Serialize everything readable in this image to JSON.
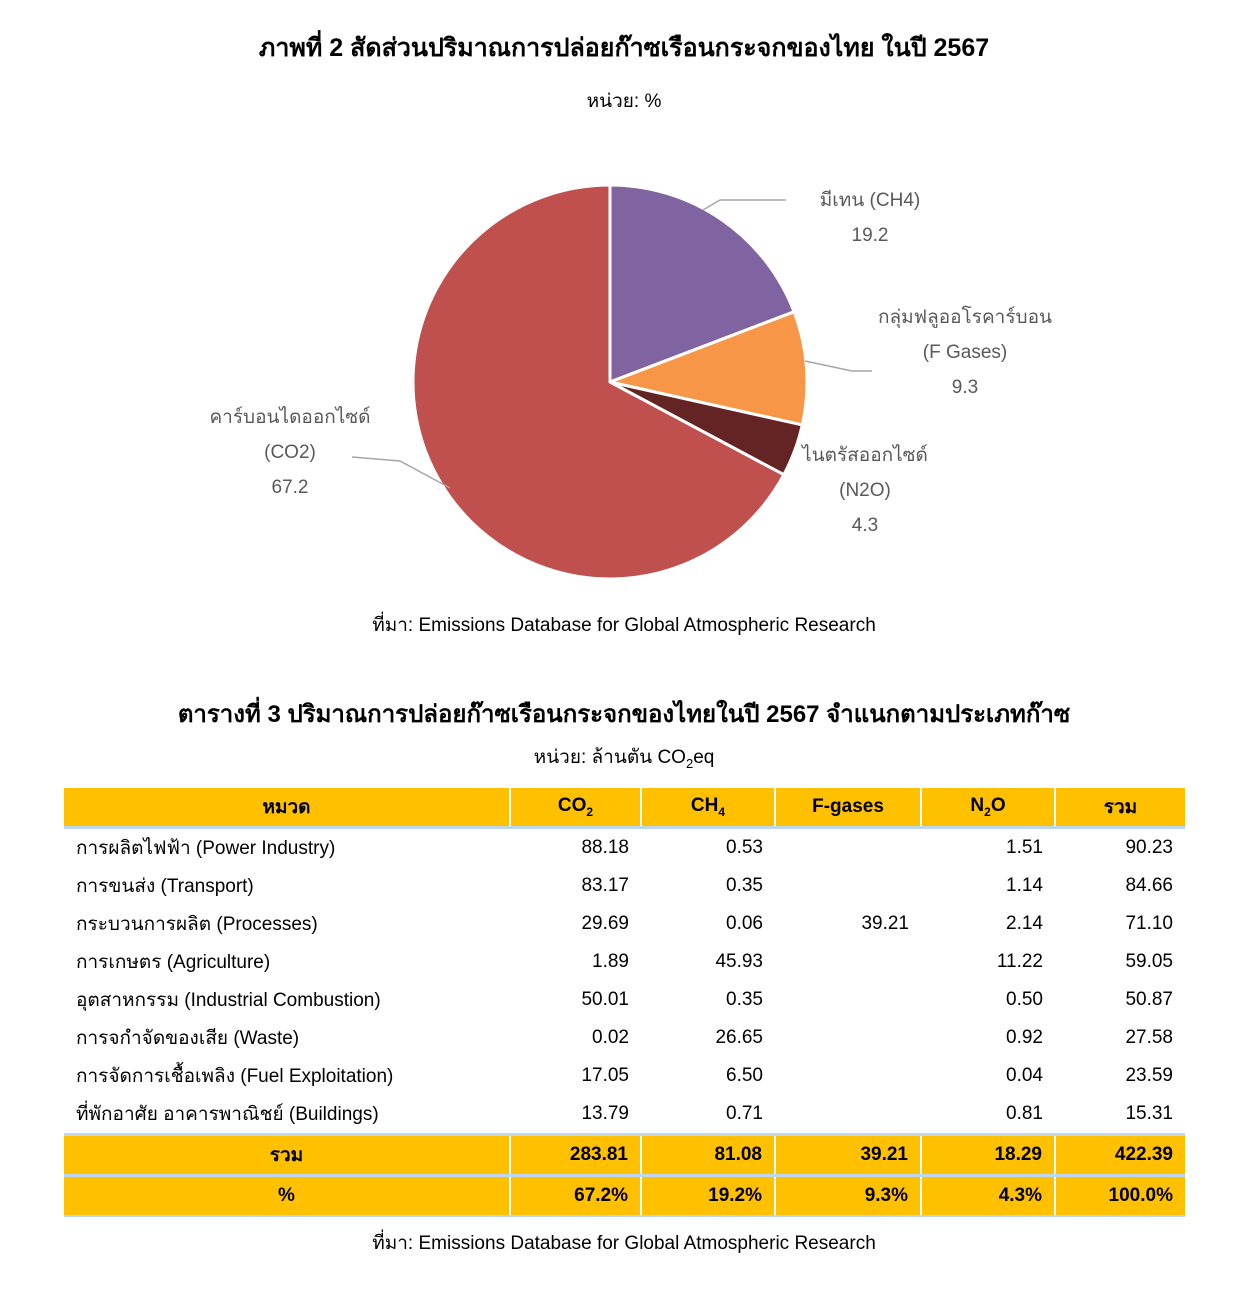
{
  "figure": {
    "title": "ภาพที่ 2 สัดส่วนปริมาณการปล่อยก๊าซเรือนกระจกของไทย ในปี 2567",
    "unit": "หน่วย: %",
    "source": "ที่มา: Emissions Database for Global Atmospheric Research"
  },
  "chart_data": [
    {
      "type": "pie",
      "title": "ภาพที่ 2 สัดส่วนปริมาณการปล่อยก๊าซเรือนกระจกของไทย ในปี 2567",
      "unit_label": "หน่วย: %",
      "start_angle_deg": 0,
      "direction": "clockwise",
      "legend_position": "callout-labels",
      "slices": [
        {
          "label": "มีเทน (CH4)",
          "label_line2": "",
          "value": 19.2,
          "color": "#8064A2"
        },
        {
          "label": "กลุ่มฟลูออโรคาร์บอน",
          "label_line2": "(F Gases)",
          "value": 9.3,
          "color": "#F79646"
        },
        {
          "label": "ไนตรัสออกไซด์",
          "label_line2": "(N2O)",
          "value": 4.3,
          "color": "#632423"
        },
        {
          "label": "คาร์บอนไดออกไซด์",
          "label_line2": "(CO2)",
          "value": 67.2,
          "color": "#C0504D"
        }
      ]
    },
    {
      "type": "table",
      "title": "ตารางที่ 3 ปริมาณการปล่อยก๊าซเรือนกระจกของไทยในปี 2567 จำแนกตามประเภทก๊าซ",
      "unit": "หน่วย: ล้านตัน CO2eq",
      "columns": [
        "หมวด",
        "CO2",
        "CH4",
        "F-gases",
        "N2O",
        "รวม"
      ],
      "rows": [
        [
          "การผลิตไฟฟ้า (Power Industry)",
          88.18,
          0.53,
          null,
          1.51,
          90.23
        ],
        [
          "การขนส่ง (Transport)",
          83.17,
          0.35,
          null,
          1.14,
          84.66
        ],
        [
          "กระบวนการผลิต (Processes)",
          29.69,
          0.06,
          39.21,
          2.14,
          71.1
        ],
        [
          "การเกษตร (Agriculture)",
          1.89,
          45.93,
          null,
          11.22,
          59.05
        ],
        [
          "อุตสาหกรรม (Industrial Combustion)",
          50.01,
          0.35,
          null,
          0.5,
          50.87
        ],
        [
          "การจกำจัดของเสีย (Waste)",
          0.02,
          26.65,
          null,
          0.92,
          27.58
        ],
        [
          "การจัดการเชื้อเพลิง (Fuel Exploitation)",
          17.05,
          6.5,
          null,
          0.04,
          23.59
        ],
        [
          "ที่พักอาศัย อาคารพาณิชย์ (Buildings)",
          13.79,
          0.71,
          null,
          0.81,
          15.31
        ]
      ],
      "total_row": [
        "รวม",
        283.81,
        81.08,
        39.21,
        18.29,
        422.39
      ],
      "percent_row": [
        "%",
        "67.2%",
        "19.2%",
        "9.3%",
        "4.3%",
        "100.0%"
      ]
    }
  ],
  "table_section": {
    "title": "ตารางที่ 3 ปริมาณการปล่อยก๊าซเรือนกระจกของไทยในปี 2567 จำแนกตามประเภทก๊าซ",
    "unit_prefix": "หน่วย: ล้านตัน CO",
    "unit_sub": "2",
    "unit_suffix": "eq",
    "source": "ที่มา: Emissions Database for Global Atmospheric Research",
    "header": [
      {
        "text": "หมวด"
      },
      {
        "text": "CO",
        "sub": "2"
      },
      {
        "text": "CH",
        "sub": "4"
      },
      {
        "text": "F-gases"
      },
      {
        "text": "N",
        "sub": "2",
        "post": "O"
      },
      {
        "text": "รวม"
      }
    ],
    "rows": [
      {
        "label": "การผลิตไฟฟ้า (Power Industry)",
        "values": [
          "88.18",
          "0.53",
          "",
          "1.51",
          "90.23"
        ]
      },
      {
        "label": "การขนส่ง (Transport)",
        "values": [
          "83.17",
          "0.35",
          "",
          "1.14",
          "84.66"
        ]
      },
      {
        "label": "กระบวนการผลิต (Processes)",
        "values": [
          "29.69",
          "0.06",
          "39.21",
          "2.14",
          "71.10"
        ]
      },
      {
        "label": "การเกษตร (Agriculture)",
        "values": [
          "1.89",
          "45.93",
          "",
          "11.22",
          "59.05"
        ]
      },
      {
        "label": "อุตสาหกรรม (Industrial Combustion)",
        "values": [
          "50.01",
          "0.35",
          "",
          "0.50",
          "50.87"
        ]
      },
      {
        "label": "การจกำจัดของเสีย (Waste)",
        "values": [
          "0.02",
          "26.65",
          "",
          "0.92",
          "27.58"
        ]
      },
      {
        "label": "การจัดการเชื้อเพลิง (Fuel Exploitation)",
        "values": [
          "17.05",
          "6.50",
          "",
          "0.04",
          "23.59"
        ]
      },
      {
        "label": "ที่พักอาศัย อาคารพาณิชย์ (Buildings)",
        "values": [
          "13.79",
          "0.71",
          "",
          "0.81",
          "15.31"
        ]
      }
    ],
    "total_rows": [
      {
        "label": "รวม",
        "values": [
          "283.81",
          "81.08",
          "39.21",
          "18.29",
          "422.39"
        ]
      },
      {
        "label": "%",
        "values": [
          "67.2%",
          "19.2%",
          "9.3%",
          "4.3%",
          "100.0%"
        ]
      }
    ]
  },
  "colors": {
    "table_header_bg": "#FFC000",
    "divider": "#BDD7EE",
    "label_text": "#595959",
    "leader_line": "#A6A6A6",
    "pie_co2": "#C0504D",
    "pie_ch4": "#8064A2",
    "pie_fgases": "#F79646",
    "pie_n2o": "#632423"
  }
}
